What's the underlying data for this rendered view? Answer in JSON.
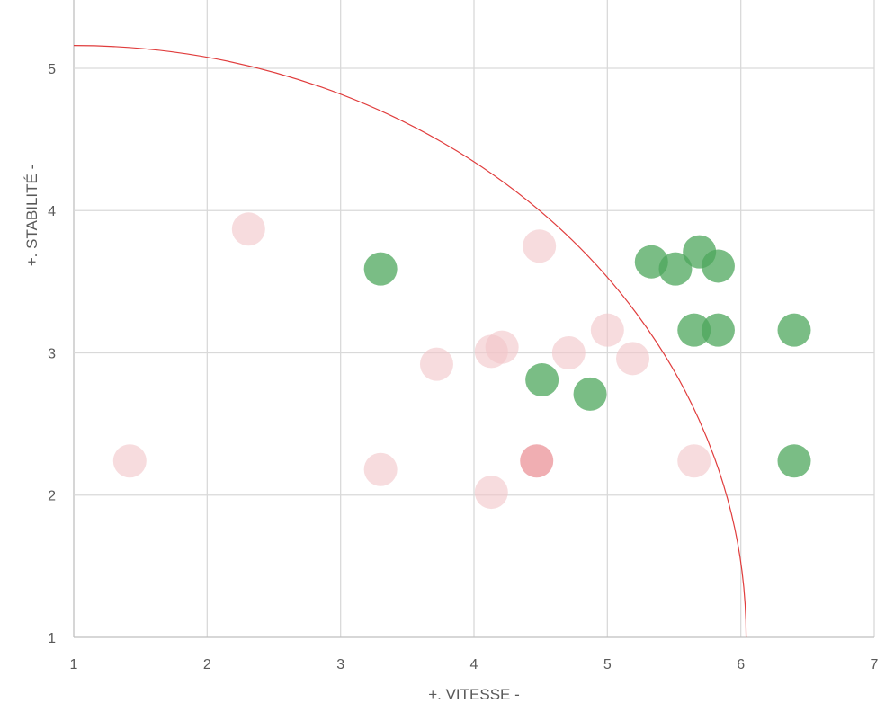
{
  "chart_data": {
    "type": "scatter",
    "title": "",
    "xlabel": "+. VITESSE  -",
    "ylabel": "+. STABILITÉ  -",
    "xlim": [
      1,
      7
    ],
    "ylim": [
      1,
      5.48
    ],
    "x_ticks": [
      1,
      2,
      3,
      4,
      5,
      6,
      7
    ],
    "y_ticks": [
      1,
      2,
      3,
      4,
      5
    ],
    "grid": true,
    "legend": "none",
    "colors": {
      "pink": "#f2c4c8",
      "red": "#ea8c92",
      "green": "#4ea75c",
      "curve": "#e03c3c",
      "grid": "#d9d9d9",
      "text": "#595959"
    },
    "series": [
      {
        "color_key": "pink",
        "opacity": 0.6,
        "points": [
          {
            "x": 1.42,
            "y": 2.24
          },
          {
            "x": 2.31,
            "y": 3.87
          },
          {
            "x": 3.3,
            "y": 2.18
          },
          {
            "x": 3.72,
            "y": 2.92
          },
          {
            "x": 4.13,
            "y": 2.02
          },
          {
            "x": 4.13,
            "y": 3.01
          },
          {
            "x": 4.21,
            "y": 3.04
          },
          {
            "x": 4.49,
            "y": 3.75
          },
          {
            "x": 4.71,
            "y": 3.0
          },
          {
            "x": 5.0,
            "y": 3.16
          },
          {
            "x": 5.19,
            "y": 2.96
          },
          {
            "x": 5.65,
            "y": 2.24
          }
        ]
      },
      {
        "color_key": "red",
        "opacity": 0.7,
        "points": [
          {
            "x": 4.47,
            "y": 2.24
          }
        ]
      },
      {
        "color_key": "green",
        "opacity": 0.75,
        "points": [
          {
            "x": 3.3,
            "y": 3.59
          },
          {
            "x": 4.51,
            "y": 2.81
          },
          {
            "x": 4.87,
            "y": 2.71
          },
          {
            "x": 5.33,
            "y": 3.64
          },
          {
            "x": 5.51,
            "y": 3.59
          },
          {
            "x": 5.69,
            "y": 3.71
          },
          {
            "x": 5.83,
            "y": 3.61
          },
          {
            "x": 5.65,
            "y": 3.16
          },
          {
            "x": 5.83,
            "y": 3.16
          },
          {
            "x": 6.4,
            "y": 3.16
          },
          {
            "x": 6.4,
            "y": 2.24
          }
        ]
      }
    ],
    "curve": {
      "type": "quarter-ellipse",
      "center": [
        1,
        1
      ],
      "x_radius": 5.04,
      "y_radius": 4.16
    }
  }
}
